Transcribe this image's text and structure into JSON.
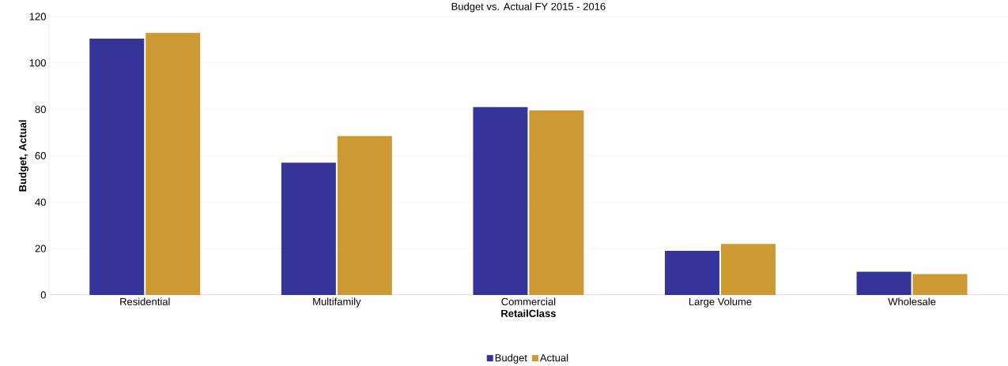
{
  "chart_data": {
    "type": "bar",
    "title": "Budget vs. Actual FY 2015 - 2016",
    "xlabel": "RetailClass",
    "ylabel": "Budget, Actual",
    "categories": [
      "Residential",
      "Multifamily",
      "Commercial",
      "Large Volume",
      "Wholesale"
    ],
    "series": [
      {
        "name": "Budget",
        "color": "#353599",
        "values": [
          110.5,
          57,
          81,
          19,
          10
        ]
      },
      {
        "name": "Actual",
        "color": "#cc9933",
        "values": [
          113,
          68.5,
          79.5,
          22,
          9
        ]
      }
    ],
    "ylim": [
      0,
      120
    ],
    "yticks": [
      0,
      20,
      40,
      60,
      80,
      100,
      120
    ],
    "grid": "y",
    "legend": "bottom"
  }
}
